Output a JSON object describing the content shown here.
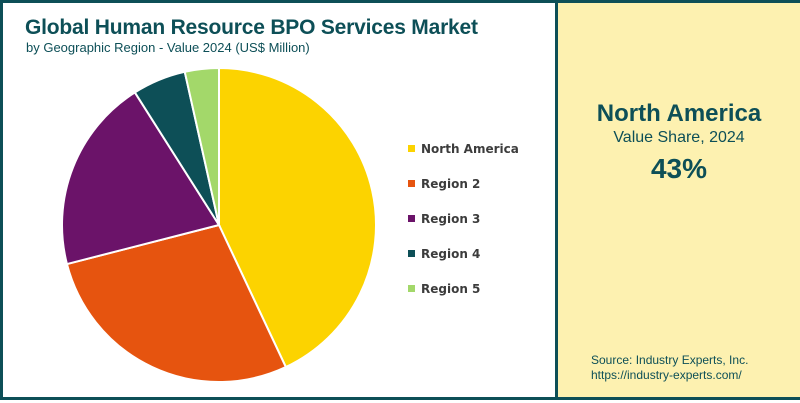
{
  "header": {
    "title": "Global Human Resource BPO Services Market",
    "subtitle": "by Geographic Region - Value 2024 (US$ Million)"
  },
  "highlight": {
    "region": "North America",
    "label": "Value Share, 2024",
    "value": "43%"
  },
  "source": {
    "line1": "Source: Industry Experts, Inc.",
    "line2": "https://industry-experts.com/"
  },
  "colors": {
    "brand": "#0d4f57",
    "panel_bg": "#fdf1b0"
  },
  "chart_data": {
    "type": "pie",
    "title": "Global Human Resource BPO Services Market",
    "subtitle": "by Geographic Region - Value 2024 (US$ Million)",
    "categories": [
      "North America",
      "Region 2",
      "Region 3",
      "Region 4",
      "Region 5"
    ],
    "values": [
      43,
      28,
      20,
      5.5,
      3.5
    ],
    "unit": "% share (estimated except North America)",
    "colors": [
      "#fcd300",
      "#e6540f",
      "#6b1369",
      "#0d4f57",
      "#a3d86a"
    ],
    "legend_position": "right",
    "start_angle": "12 o'clock, clockwise"
  }
}
